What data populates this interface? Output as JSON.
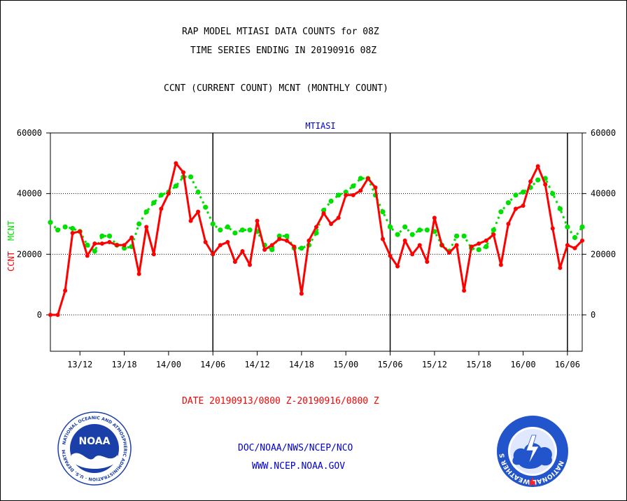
{
  "header": {
    "title_line1": "RAP MODEL MTIASI DATA COUNTS for 08Z",
    "title_line2": "TIME SERIES ENDING IN 20190916 08Z",
    "legend_line": "CCNT (CURRENT COUNT) MCNT (MONTHLY COUNT)"
  },
  "footer": {
    "date_range": "DATE 20190913/0800 Z-20190916/0800 Z",
    "org": "DOC/NOAA/NWS/NCEP/NCO",
    "url": "WWW.NCEP.NOAA.GOV"
  },
  "logos": {
    "noaa_text": "NOAA",
    "noaa_ring_text": "NATIONAL OCEANIC AND ATMOSPHERIC ADMINISTRATION · U.S. DEPARTMENT OF COMMERCE ·",
    "nws_ring_text": "NATIONAL WEATHER SERVICE"
  },
  "colors": {
    "ccnt": "#ff0000",
    "mcnt": "#00e000",
    "title_blue": "#0000cc",
    "noaa_blue": "#1a3fa8",
    "nws_blue": "#2255cc"
  },
  "chart_data": {
    "type": "line",
    "title": "MTIASI",
    "ylabel_left_ccnt": "CCNT",
    "ylabel_left_mcnt": "MCNT",
    "xlabel": "DATE 20190913/0800 Z-20190916/0800 Z",
    "x_range_hours": [
      8,
      80
    ],
    "ylim": [
      -12000,
      60000
    ],
    "yticks": [
      0,
      20000,
      40000,
      60000
    ],
    "ytick_labels": [
      "0",
      "20000",
      "40000",
      "60000"
    ],
    "xticks": [
      12,
      18,
      24,
      30,
      36,
      42,
      48,
      54,
      60,
      66,
      72,
      78
    ],
    "xtick_labels": [
      "13/12",
      "13/18",
      "14/00",
      "14/06",
      "14/12",
      "14/18",
      "15/00",
      "15/06",
      "15/12",
      "15/18",
      "16/00",
      "16/06"
    ],
    "gridlines_y": [
      0,
      20000,
      40000
    ],
    "day_separators_x": [
      30,
      54,
      78
    ],
    "series": [
      {
        "name": "CCNT",
        "color": "#ff0000",
        "values": [
          0,
          0,
          8000,
          27000,
          27500,
          19500,
          23500,
          23500,
          24000,
          23000,
          23000,
          25500,
          13500,
          29000,
          20000,
          35000,
          40000,
          50000,
          47000,
          31000,
          34000,
          24000,
          20000,
          23000,
          24000,
          17500,
          21000,
          16500,
          31000,
          21500,
          23000,
          25000,
          24500,
          22500,
          7000,
          24500,
          29000,
          33500,
          30000,
          32000,
          39500,
          39500,
          41000,
          45000,
          42000,
          25000,
          19500,
          16000,
          24500,
          20000,
          23000,
          17500,
          32000,
          23000,
          20500,
          23000,
          8000,
          22500,
          23500,
          24500,
          26500,
          16500,
          30000,
          35000,
          36000,
          44000,
          49000,
          43000,
          28500,
          15500,
          23000,
          22000,
          24500
        ]
      },
      {
        "name": "MCNT",
        "color": "#00e000",
        "values": [
          30500,
          28000,
          29000,
          28500,
          27500,
          23000,
          21000,
          26000,
          26000,
          23000,
          22000,
          22500,
          30000,
          34000,
          37000,
          39500,
          40500,
          42500,
          45500,
          45500,
          40500,
          35500,
          30000,
          28000,
          29000,
          27000,
          28000,
          28000,
          27500,
          23000,
          21500,
          26000,
          26000,
          22000,
          22000,
          23000,
          27000,
          34500,
          37500,
          39500,
          40500,
          42500,
          45000,
          45000,
          39500,
          34000,
          29000,
          26500,
          29000,
          26500,
          28000,
          28000,
          27500,
          23000,
          21000,
          26000,
          26000,
          22000,
          21500,
          22500,
          28000,
          34000,
          37000,
          39500,
          40500,
          42000,
          44500,
          45000,
          40000,
          35000,
          29000,
          25500,
          29000
        ]
      }
    ]
  }
}
